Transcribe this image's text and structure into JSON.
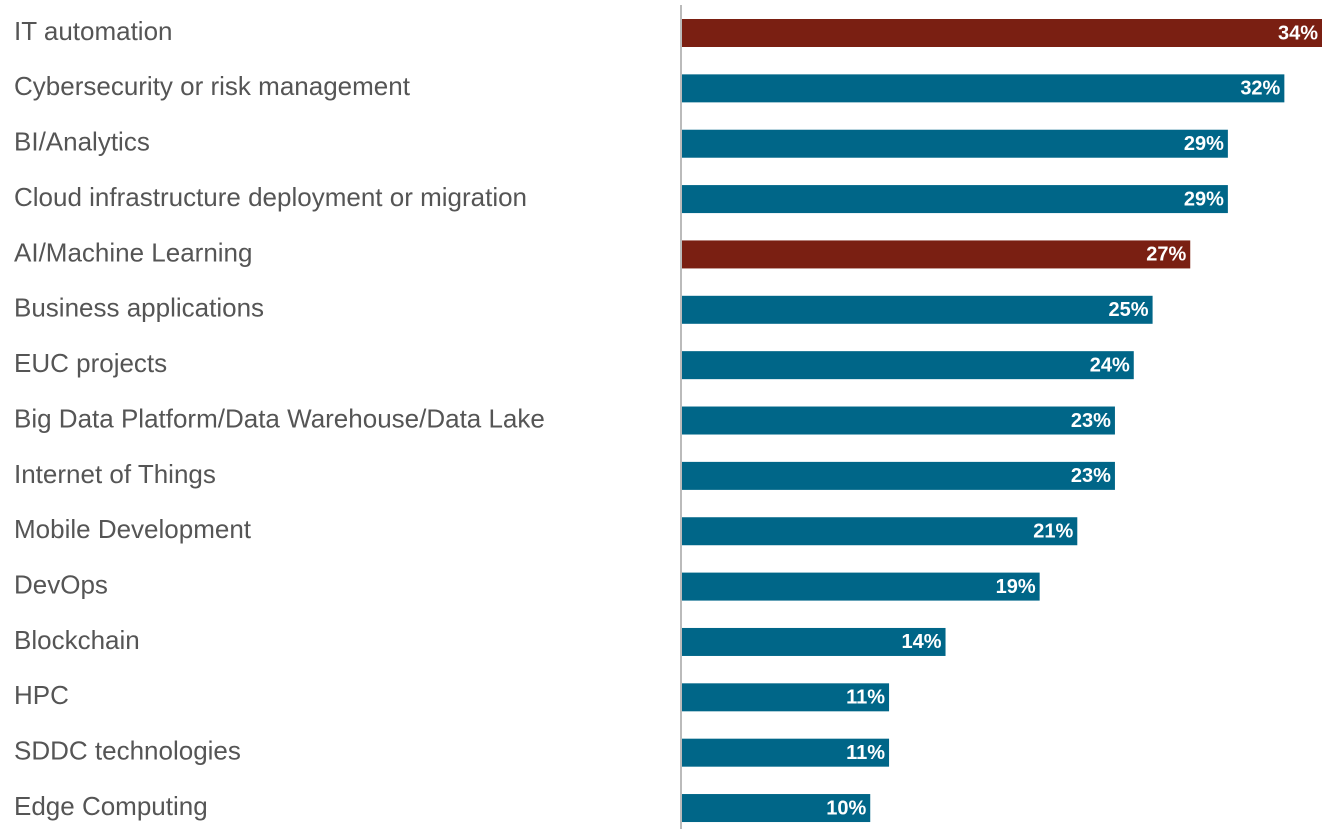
{
  "chart_data": {
    "type": "barh",
    "categories": [
      "IT automation",
      "Cybersecurity or risk management",
      "BI/Analytics",
      "Cloud infrastructure deployment or migration",
      "AI/Machine Learning",
      "Business applications",
      "EUC projects",
      "Big Data Platform/Data Warehouse/Data Lake",
      "Internet of Things",
      "Mobile Development",
      "DevOps",
      "Blockchain",
      "HPC",
      "SDDC technologies",
      "Edge Computing"
    ],
    "values": [
      34,
      32,
      29,
      29,
      27,
      25,
      24,
      23,
      23,
      21,
      19,
      14,
      11,
      11,
      10
    ],
    "value_labels": [
      "34%",
      "32%",
      "29%",
      "29%",
      "27%",
      "25%",
      "24%",
      "23%",
      "23%",
      "21%",
      "19%",
      "14%",
      "11%",
      "11%",
      "10%"
    ],
    "colors": [
      "#7a1f12",
      "#006688",
      "#006688",
      "#006688",
      "#7a1f12",
      "#006688",
      "#006688",
      "#006688",
      "#006688",
      "#006688",
      "#006688",
      "#006688",
      "#006688",
      "#006688",
      "#006688"
    ],
    "xlim": [
      0,
      34
    ]
  }
}
